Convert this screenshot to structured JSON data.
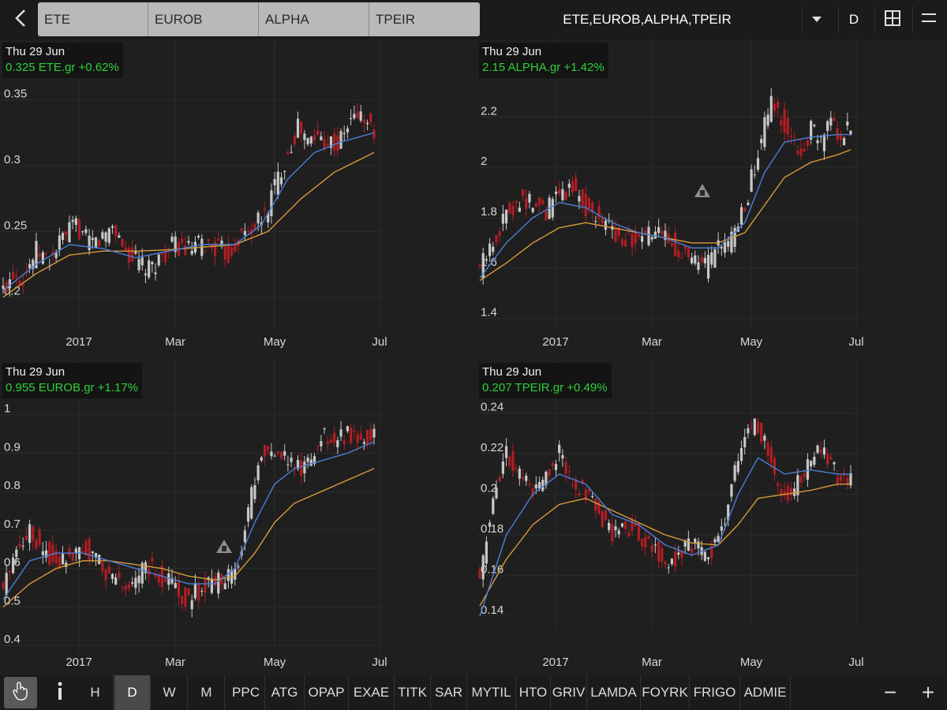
{
  "toolbar": {
    "symbols": [
      "ETE",
      "EUROB",
      "ALPHA",
      "TPEIR"
    ],
    "watchlist_title": "ETE,EUROB,ALPHA,TPEIR",
    "period": "D",
    "icons": {
      "back": "chevron-left-icon",
      "dropdown": "caret-down-icon",
      "layout": "grid-icon",
      "menu": "hamburger-icon"
    }
  },
  "panels": [
    {
      "date": "Thu 29 Jun",
      "quote": "0.325 ETE.gr +0.62%"
    },
    {
      "date": "Thu 29 Jun",
      "quote": "2.15 ALPHA.gr +1.42%"
    },
    {
      "date": "Thu 29 Jun",
      "quote": "0.955 EUROB.gr +1.17%"
    },
    {
      "date": "Thu 29 Jun",
      "quote": "0.207 TPEIR.gr +0.49%"
    }
  ],
  "colors": {
    "up": "#c8c8c8",
    "down": "#b01e24",
    "ma_short": "#4a7fd6",
    "ma_long": "#d89a3a",
    "quote": "#2fcf3a"
  },
  "chart_data": [
    {
      "type": "candlestick",
      "symbol": "ETE.gr",
      "x_ticks": [
        "2017",
        "Mar",
        "May",
        "Jul"
      ],
      "y_ticks": [
        "0.35",
        "0.3",
        "0.25",
        "0.2"
      ],
      "ylim": [
        0.18,
        0.36
      ],
      "close_path": [
        [
          0,
          0.205
        ],
        [
          3,
          0.22
        ],
        [
          6,
          0.215
        ],
        [
          10,
          0.235
        ],
        [
          14,
          0.228
        ],
        [
          18,
          0.245
        ],
        [
          22,
          0.255
        ],
        [
          26,
          0.24
        ],
        [
          30,
          0.245
        ],
        [
          33,
          0.255
        ],
        [
          37,
          0.235
        ],
        [
          40,
          0.228
        ],
        [
          44,
          0.22
        ],
        [
          48,
          0.232
        ],
        [
          52,
          0.24
        ],
        [
          56,
          0.235
        ],
        [
          60,
          0.24
        ],
        [
          64,
          0.238
        ],
        [
          68,
          0.232
        ],
        [
          71,
          0.245
        ],
        [
          75,
          0.252
        ],
        [
          79,
          0.262
        ],
        [
          82,
          0.285
        ],
        [
          86,
          0.31
        ],
        [
          89,
          0.33
        ],
        [
          92,
          0.318
        ],
        [
          95,
          0.322
        ],
        [
          98,
          0.32
        ],
        [
          101,
          0.315
        ],
        [
          104,
          0.33
        ],
        [
          107,
          0.34
        ],
        [
          110,
          0.332
        ],
        [
          112,
          0.325
        ]
      ],
      "ma_short_path": [
        [
          0,
          0.205
        ],
        [
          10,
          0.225
        ],
        [
          20,
          0.24
        ],
        [
          30,
          0.237
        ],
        [
          40,
          0.23
        ],
        [
          50,
          0.235
        ],
        [
          60,
          0.24
        ],
        [
          70,
          0.24
        ],
        [
          78,
          0.255
        ],
        [
          86,
          0.29
        ],
        [
          94,
          0.31
        ],
        [
          102,
          0.318
        ],
        [
          112,
          0.325
        ]
      ],
      "ma_long_path": [
        [
          0,
          0.2
        ],
        [
          10,
          0.218
        ],
        [
          20,
          0.232
        ],
        [
          30,
          0.235
        ],
        [
          40,
          0.235
        ],
        [
          50,
          0.236
        ],
        [
          60,
          0.238
        ],
        [
          70,
          0.24
        ],
        [
          80,
          0.25
        ],
        [
          90,
          0.275
        ],
        [
          100,
          0.295
        ],
        [
          112,
          0.31
        ]
      ]
    },
    {
      "type": "candlestick",
      "symbol": "ALPHA.gr",
      "x_ticks": [
        "2017",
        "Mar",
        "May",
        "Jul"
      ],
      "y_ticks": [
        "2.2",
        "2",
        "1.8",
        "1.6",
        "1.4"
      ],
      "ylim": [
        1.38,
        2.32
      ],
      "close_path": [
        [
          0,
          1.6
        ],
        [
          4,
          1.7
        ],
        [
          8,
          1.82
        ],
        [
          12,
          1.88
        ],
        [
          16,
          1.85
        ],
        [
          20,
          1.82
        ],
        [
          24,
          1.9
        ],
        [
          28,
          1.92
        ],
        [
          32,
          1.84
        ],
        [
          36,
          1.8
        ],
        [
          40,
          1.75
        ],
        [
          44,
          1.72
        ],
        [
          48,
          1.7
        ],
        [
          52,
          1.74
        ],
        [
          56,
          1.72
        ],
        [
          60,
          1.68
        ],
        [
          64,
          1.62
        ],
        [
          68,
          1.6
        ],
        [
          71,
          1.66
        ],
        [
          75,
          1.7
        ],
        [
          79,
          1.8
        ],
        [
          82,
          1.95
        ],
        [
          85,
          2.12
        ],
        [
          88,
          2.25
        ],
        [
          91,
          2.2
        ],
        [
          94,
          2.1
        ],
        [
          97,
          2.05
        ],
        [
          100,
          2.15
        ],
        [
          103,
          2.1
        ],
        [
          106,
          2.18
        ],
        [
          109,
          2.12
        ],
        [
          112,
          2.15
        ]
      ],
      "ma_short_path": [
        [
          0,
          1.56
        ],
        [
          8,
          1.7
        ],
        [
          16,
          1.8
        ],
        [
          24,
          1.86
        ],
        [
          32,
          1.84
        ],
        [
          40,
          1.78
        ],
        [
          48,
          1.74
        ],
        [
          56,
          1.72
        ],
        [
          64,
          1.68
        ],
        [
          72,
          1.68
        ],
        [
          80,
          1.78
        ],
        [
          86,
          1.98
        ],
        [
          92,
          2.1
        ],
        [
          100,
          2.12
        ],
        [
          108,
          2.13
        ],
        [
          112,
          2.13
        ]
      ],
      "ma_long_path": [
        [
          0,
          1.55
        ],
        [
          8,
          1.62
        ],
        [
          16,
          1.7
        ],
        [
          24,
          1.76
        ],
        [
          32,
          1.78
        ],
        [
          40,
          1.76
        ],
        [
          48,
          1.74
        ],
        [
          56,
          1.72
        ],
        [
          64,
          1.7
        ],
        [
          72,
          1.7
        ],
        [
          80,
          1.74
        ],
        [
          86,
          1.85
        ],
        [
          92,
          1.96
        ],
        [
          100,
          2.02
        ],
        [
          108,
          2.05
        ],
        [
          112,
          2.07
        ]
      ]
    },
    {
      "type": "candlestick",
      "symbol": "EUROB.gr",
      "x_ticks": [
        "2017",
        "Mar",
        "May",
        "Jul"
      ],
      "y_ticks": [
        "1",
        "0.9",
        "0.8",
        "0.7",
        "0.6",
        "0.5",
        "0.4"
      ],
      "ylim": [
        0.4,
        1.02
      ],
      "close_path": [
        [
          0,
          0.55
        ],
        [
          4,
          0.66
        ],
        [
          8,
          0.7
        ],
        [
          12,
          0.65
        ],
        [
          16,
          0.62
        ],
        [
          20,
          0.64
        ],
        [
          24,
          0.66
        ],
        [
          28,
          0.62
        ],
        [
          32,
          0.58
        ],
        [
          36,
          0.55
        ],
        [
          40,
          0.58
        ],
        [
          44,
          0.6
        ],
        [
          48,
          0.58
        ],
        [
          52,
          0.55
        ],
        [
          56,
          0.52
        ],
        [
          60,
          0.55
        ],
        [
          64,
          0.56
        ],
        [
          68,
          0.58
        ],
        [
          71,
          0.62
        ],
        [
          74,
          0.74
        ],
        [
          77,
          0.88
        ],
        [
          80,
          0.92
        ],
        [
          84,
          0.9
        ],
        [
          88,
          0.85
        ],
        [
          92,
          0.88
        ],
        [
          96,
          0.95
        ],
        [
          100,
          0.92
        ],
        [
          104,
          0.96
        ],
        [
          108,
          0.93
        ],
        [
          112,
          0.955
        ]
      ],
      "ma_short_path": [
        [
          0,
          0.52
        ],
        [
          8,
          0.62
        ],
        [
          16,
          0.64
        ],
        [
          24,
          0.64
        ],
        [
          32,
          0.62
        ],
        [
          40,
          0.6
        ],
        [
          48,
          0.58
        ],
        [
          56,
          0.56
        ],
        [
          64,
          0.56
        ],
        [
          70,
          0.6
        ],
        [
          76,
          0.72
        ],
        [
          82,
          0.82
        ],
        [
          88,
          0.86
        ],
        [
          96,
          0.88
        ],
        [
          104,
          0.9
        ],
        [
          112,
          0.93
        ]
      ],
      "ma_long_path": [
        [
          0,
          0.5
        ],
        [
          8,
          0.56
        ],
        [
          16,
          0.6
        ],
        [
          24,
          0.62
        ],
        [
          32,
          0.62
        ],
        [
          40,
          0.61
        ],
        [
          48,
          0.6
        ],
        [
          56,
          0.58
        ],
        [
          64,
          0.57
        ],
        [
          70,
          0.58
        ],
        [
          76,
          0.64
        ],
        [
          82,
          0.72
        ],
        [
          88,
          0.77
        ],
        [
          96,
          0.8
        ],
        [
          104,
          0.83
        ],
        [
          112,
          0.86
        ]
      ]
    },
    {
      "type": "candlestick",
      "symbol": "TPEIR.gr",
      "x_ticks": [
        "2017",
        "Mar",
        "May",
        "Jul"
      ],
      "y_ticks": [
        "0.24",
        "0.22",
        "0.2",
        "0.18",
        "0.16",
        "0.14"
      ],
      "ylim": [
        0.138,
        0.243
      ],
      "close_path": [
        [
          0,
          0.16
        ],
        [
          4,
          0.2
        ],
        [
          8,
          0.22
        ],
        [
          12,
          0.21
        ],
        [
          16,
          0.2
        ],
        [
          20,
          0.21
        ],
        [
          24,
          0.22
        ],
        [
          28,
          0.205
        ],
        [
          32,
          0.2
        ],
        [
          36,
          0.19
        ],
        [
          40,
          0.18
        ],
        [
          44,
          0.185
        ],
        [
          48,
          0.18
        ],
        [
          52,
          0.175
        ],
        [
          56,
          0.165
        ],
        [
          60,
          0.17
        ],
        [
          64,
          0.175
        ],
        [
          68,
          0.17
        ],
        [
          71,
          0.175
        ],
        [
          74,
          0.19
        ],
        [
          77,
          0.21
        ],
        [
          80,
          0.23
        ],
        [
          83,
          0.235
        ],
        [
          86,
          0.225
        ],
        [
          90,
          0.205
        ],
        [
          94,
          0.2
        ],
        [
          98,
          0.21
        ],
        [
          102,
          0.225
        ],
        [
          106,
          0.215
        ],
        [
          110,
          0.205
        ],
        [
          112,
          0.207
        ]
      ],
      "ma_short_path": [
        [
          0,
          0.14
        ],
        [
          8,
          0.18
        ],
        [
          16,
          0.2
        ],
        [
          24,
          0.21
        ],
        [
          32,
          0.205
        ],
        [
          40,
          0.19
        ],
        [
          48,
          0.185
        ],
        [
          56,
          0.175
        ],
        [
          64,
          0.17
        ],
        [
          72,
          0.175
        ],
        [
          78,
          0.2
        ],
        [
          84,
          0.218
        ],
        [
          92,
          0.21
        ],
        [
          100,
          0.212
        ],
        [
          108,
          0.21
        ],
        [
          112,
          0.21
        ]
      ],
      "ma_long_path": [
        [
          0,
          0.145
        ],
        [
          8,
          0.168
        ],
        [
          16,
          0.185
        ],
        [
          24,
          0.195
        ],
        [
          32,
          0.198
        ],
        [
          40,
          0.192
        ],
        [
          48,
          0.186
        ],
        [
          56,
          0.18
        ],
        [
          64,
          0.176
        ],
        [
          72,
          0.175
        ],
        [
          78,
          0.185
        ],
        [
          84,
          0.198
        ],
        [
          92,
          0.2
        ],
        [
          100,
          0.202
        ],
        [
          108,
          0.205
        ],
        [
          112,
          0.205
        ]
      ]
    }
  ],
  "bottom": {
    "icons": {
      "hand": "hand-pointer-icon",
      "info": "info-icon",
      "zoom_out": "minus-icon",
      "zoom_in": "plus-icon"
    },
    "periods": [
      "H",
      "D",
      "W",
      "M"
    ],
    "active_period": "D",
    "symbols": [
      "PPC",
      "ATG",
      "OPAP",
      "EXAE",
      "TITK",
      "SAR",
      "MYTIL",
      "HTO",
      "GRIV",
      "LAMDA",
      "FOYRK",
      "FRIGO",
      "ADMIE"
    ],
    "zoom_out_label": "−",
    "zoom_in_label": "+"
  }
}
